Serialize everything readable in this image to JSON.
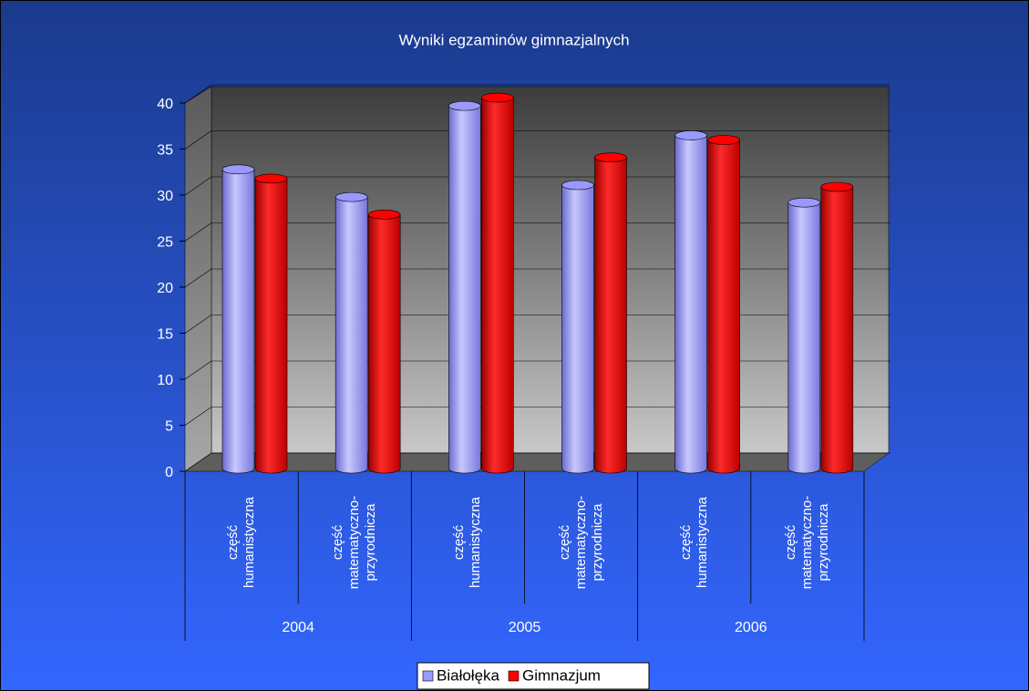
{
  "chart_data": {
    "type": "bar3d",
    "title": "Wyniki egzaminów gimnazjalnych",
    "categories": [
      "część humanistyczna",
      "część matematyczno-przyrodnicza",
      "część humanistyczna",
      "część matematyczno-przyrodnicza",
      "część humanistyczna",
      "część matematyczno-przyrodnicza"
    ],
    "groups": [
      "2004",
      "2005",
      "2006"
    ],
    "series": [
      {
        "name": "Białołęka",
        "color": "#9999ff",
        "values": [
          31.8,
          28.8,
          38.7,
          30.1,
          35.5,
          28.2
        ]
      },
      {
        "name": "Gimnazjum",
        "color": "#ff0000",
        "values": [
          30.8,
          26.9,
          39.6,
          33.1,
          35.0,
          29.9
        ]
      }
    ],
    "ylim": [
      0,
      40
    ],
    "yticks": [
      0,
      5,
      10,
      15,
      20,
      25,
      30,
      35,
      40
    ],
    "grid": true,
    "legend": "bottom"
  }
}
